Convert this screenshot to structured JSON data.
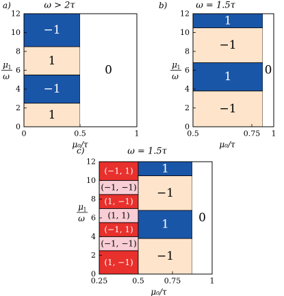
{
  "colors": {
    "blue": "#1a56a8",
    "peach": "#fde4cb",
    "red": "#e8302c",
    "pink": "#f8cdd5",
    "white": "#ffffff",
    "frame": "#000000"
  },
  "ylabel": {
    "num": "μ",
    "sub": "1",
    "den": "ω"
  },
  "xlabel": "μ₀/τ",
  "chart_data": [
    {
      "type": "heatmap",
      "panel": "a)",
      "title": "ω > 2τ",
      "xlabel": "μ₀/τ",
      "ylabel": "μ₁/ω",
      "xlim": [
        0,
        1
      ],
      "ylim": [
        0,
        12
      ],
      "xticks": [
        "0",
        "0.5",
        "1"
      ],
      "yticks": [
        "0",
        "2",
        "4",
        "6",
        "8",
        "10",
        "12"
      ],
      "regions": [
        {
          "x": [
            0,
            0.5
          ],
          "y": [
            0,
            2.5
          ],
          "label": "1",
          "color": "peach"
        },
        {
          "x": [
            0,
            0.5
          ],
          "y": [
            2.5,
            5.5
          ],
          "label": "−1",
          "color": "blue"
        },
        {
          "x": [
            0,
            0.5
          ],
          "y": [
            5.5,
            8.5
          ],
          "label": "1",
          "color": "peach"
        },
        {
          "x": [
            0,
            0.5
          ],
          "y": [
            8.5,
            12
          ],
          "label": "−1",
          "color": "blue"
        },
        {
          "x": [
            0.5,
            1
          ],
          "y": [
            0,
            12
          ],
          "label": "0",
          "color": "white"
        }
      ]
    },
    {
      "type": "heatmap",
      "panel": "b)",
      "title": "ω = 1.5τ",
      "xlabel": "μ₀/τ",
      "ylabel": "μ₁/ω",
      "xlim": [
        0.5,
        1
      ],
      "ylim": [
        0,
        12
      ],
      "xticks": [
        "0.5",
        "0.75",
        "1"
      ],
      "yticks": [
        "0",
        "2",
        "4",
        "6",
        "8",
        "10",
        "12"
      ],
      "regions": [
        {
          "x": [
            0.5,
            0.875
          ],
          "y": [
            0,
            3.8
          ],
          "label": "−1",
          "color": "peach"
        },
        {
          "x": [
            0.5,
            0.875
          ],
          "y": [
            3.8,
            6.8
          ],
          "label": "1",
          "color": "blue"
        },
        {
          "x": [
            0.5,
            0.875
          ],
          "y": [
            6.8,
            10.5
          ],
          "label": "−1",
          "color": "peach"
        },
        {
          "x": [
            0.5,
            0.875
          ],
          "y": [
            10.5,
            12
          ],
          "label": "1",
          "color": "blue"
        },
        {
          "x": [
            0.875,
            1
          ],
          "y": [
            0,
            12
          ],
          "label": "0",
          "color": "white"
        }
      ]
    },
    {
      "type": "heatmap",
      "panel": "c)",
      "title": "ω = 1.5τ",
      "xlabel": "μ₀/τ",
      "ylabel": "μ₁/ω",
      "xlim": [
        0.25,
        1
      ],
      "ylim": [
        0,
        12
      ],
      "xticks": [
        "0.25",
        "0.5",
        "0.75",
        "1"
      ],
      "yticks": [
        "0",
        "2",
        "4",
        "6",
        "8",
        "10",
        "12"
      ],
      "regions": [
        {
          "x": [
            0.25,
            0.5
          ],
          "y": [
            0,
            2.5
          ],
          "label": "(1, −1)",
          "color": "red"
        },
        {
          "x": [
            0.25,
            0.5
          ],
          "y": [
            2.5,
            4.0
          ],
          "label": "(−1, −1)",
          "color": "pink"
        },
        {
          "x": [
            0.25,
            0.5
          ],
          "y": [
            4.0,
            5.5
          ],
          "label": "(−1, 1)",
          "color": "red"
        },
        {
          "x": [
            0.25,
            0.5
          ],
          "y": [
            5.5,
            7.0
          ],
          "label": "(1, 1)",
          "color": "pink"
        },
        {
          "x": [
            0.25,
            0.5
          ],
          "y": [
            7.0,
            8.5
          ],
          "label": "(1, −1)",
          "color": "red"
        },
        {
          "x": [
            0.25,
            0.5
          ],
          "y": [
            8.5,
            10.0
          ],
          "label": "(−1, −1)",
          "color": "pink"
        },
        {
          "x": [
            0.25,
            0.5
          ],
          "y": [
            10.0,
            12
          ],
          "label": "(−1, 1)",
          "color": "red"
        },
        {
          "x": [
            0.5,
            0.875
          ],
          "y": [
            0,
            3.8
          ],
          "label": "−1",
          "color": "peach"
        },
        {
          "x": [
            0.5,
            0.875
          ],
          "y": [
            3.8,
            6.8
          ],
          "label": "1",
          "color": "blue"
        },
        {
          "x": [
            0.5,
            0.875
          ],
          "y": [
            6.8,
            10.5
          ],
          "label": "−1",
          "color": "peach"
        },
        {
          "x": [
            0.5,
            0.875
          ],
          "y": [
            10.5,
            12
          ],
          "label": "1",
          "color": "blue"
        },
        {
          "x": [
            0.875,
            1
          ],
          "y": [
            0,
            12
          ],
          "label": "0",
          "color": "white"
        }
      ]
    }
  ]
}
